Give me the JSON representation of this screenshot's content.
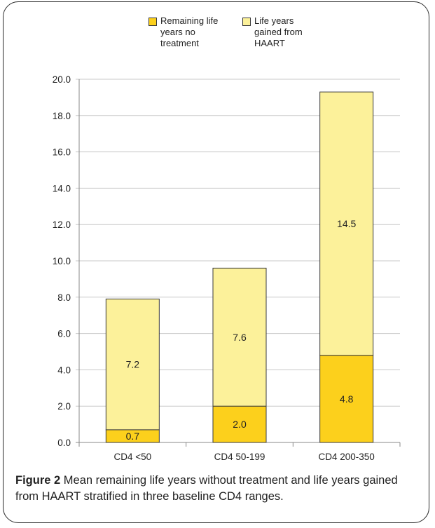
{
  "chart_data": {
    "type": "bar",
    "stacked": true,
    "categories": [
      "CD4 <50",
      "CD4 50-199",
      "CD4 200-350"
    ],
    "series": [
      {
        "name": "Remaining life years no treatment",
        "values": [
          0.7,
          2.0,
          4.8
        ],
        "labels": [
          "0.7",
          "2.0",
          "4.8"
        ],
        "color": "#FCD01C"
      },
      {
        "name": "Life years gained from HAART",
        "values": [
          7.2,
          7.6,
          14.5
        ],
        "labels": [
          "7.2",
          "7.6",
          "14.5"
        ],
        "color": "#FCF19A"
      }
    ],
    "ylim": [
      0,
      20
    ],
    "yticks": [
      "0.0",
      "2.0",
      "4.0",
      "6.0",
      "8.0",
      "10.0",
      "12.0",
      "14.0",
      "16.0",
      "18.0",
      "20.0"
    ],
    "grid": true,
    "legend_position": "top",
    "title": "",
    "xlabel": "",
    "ylabel": ""
  },
  "legend": {
    "items": [
      {
        "label": "Remaining life\nyears no\ntreatment",
        "color": "#FCD01C"
      },
      {
        "label": "Life years\ngained from\nHAART",
        "color": "#FCF19A"
      }
    ]
  },
  "caption": {
    "figure_label": "Figure 2",
    "text": " Mean remaining life years without treatment and life years gained from HAART stratified in three baseline CD4 ranges",
    "suffix": "."
  }
}
